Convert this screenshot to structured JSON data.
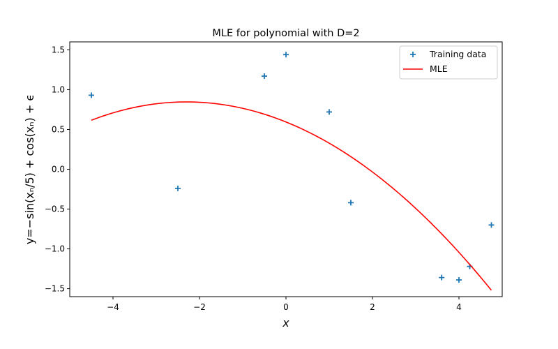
{
  "chart_data": {
    "type": "scatter",
    "title": "MLE for polynomial with D=2",
    "xlabel": "x",
    "ylabel": "y=−sin(xₙ/5) + cos(xₙ) + ϵ",
    "xlim": [
      -5,
      5
    ],
    "ylim": [
      -1.6,
      1.6
    ],
    "xticks": [
      -4,
      -2,
      0,
      2,
      4
    ],
    "xtick_labels": [
      "−4",
      "−2",
      "0",
      "2",
      "4"
    ],
    "yticks": [
      -1.5,
      -1.0,
      -0.5,
      0.0,
      0.5,
      1.0,
      1.5
    ],
    "ytick_labels": [
      "−1.5",
      "−1.0",
      "−0.5",
      "0.0",
      "0.5",
      "1.0",
      "1.5"
    ],
    "grid": false,
    "legend_position": "top-right",
    "series": [
      {
        "name": "Training data",
        "kind": "scatter",
        "marker": "plus",
        "color": "#1f77b4",
        "points": [
          {
            "x": -4.5,
            "y": 0.93
          },
          {
            "x": -2.5,
            "y": -0.24
          },
          {
            "x": -0.5,
            "y": 1.17
          },
          {
            "x": 0.0,
            "y": 1.44
          },
          {
            "x": 1.0,
            "y": 0.72
          },
          {
            "x": 1.5,
            "y": -0.42
          },
          {
            "x": 3.6,
            "y": -1.36
          },
          {
            "x": 4.0,
            "y": -1.39
          },
          {
            "x": 4.25,
            "y": -1.22
          },
          {
            "x": 4.75,
            "y": -0.7
          }
        ]
      },
      {
        "name": "MLE",
        "kind": "line",
        "color": "#ff0000",
        "coefficients": [
          0.594,
          -0.219,
          -0.0476
        ],
        "x_range": [
          -4.5,
          4.75
        ]
      }
    ]
  }
}
